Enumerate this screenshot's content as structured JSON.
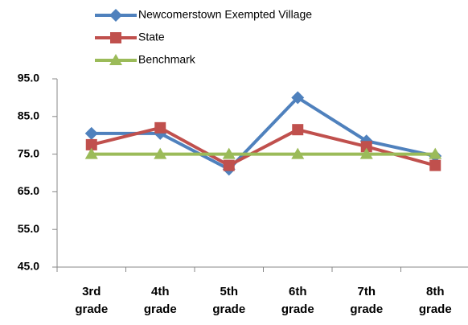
{
  "chart_data": {
    "type": "line",
    "categories": [
      "3rd grade",
      "4th grade",
      "5th grade",
      "6th grade",
      "7th grade",
      "8th grade"
    ],
    "series": [
      {
        "name": "Newcomerstown Exempted Village",
        "color": "#4f81bd",
        "marker": "diamond",
        "values": [
          80.5,
          80.5,
          71,
          90,
          78.5,
          74.5
        ]
      },
      {
        "name": "State",
        "color": "#c0504d",
        "marker": "square",
        "values": [
          77.5,
          82,
          72,
          81.5,
          77,
          72
        ]
      },
      {
        "name": "Benchmark",
        "color": "#9bbb59",
        "marker": "triangle",
        "values": [
          75,
          75,
          75,
          75,
          75,
          75
        ]
      }
    ],
    "ylim": [
      45,
      95
    ],
    "yticks": [
      {
        "value": 45,
        "label": "45.0"
      },
      {
        "value": 55,
        "label": "55.0"
      },
      {
        "value": 65,
        "label": "65.0"
      },
      {
        "value": 75,
        "label": "75.0"
      },
      {
        "value": 85,
        "label": "85.0"
      },
      {
        "value": 95,
        "label": "95.0"
      }
    ],
    "legend": "top",
    "grid": false
  }
}
